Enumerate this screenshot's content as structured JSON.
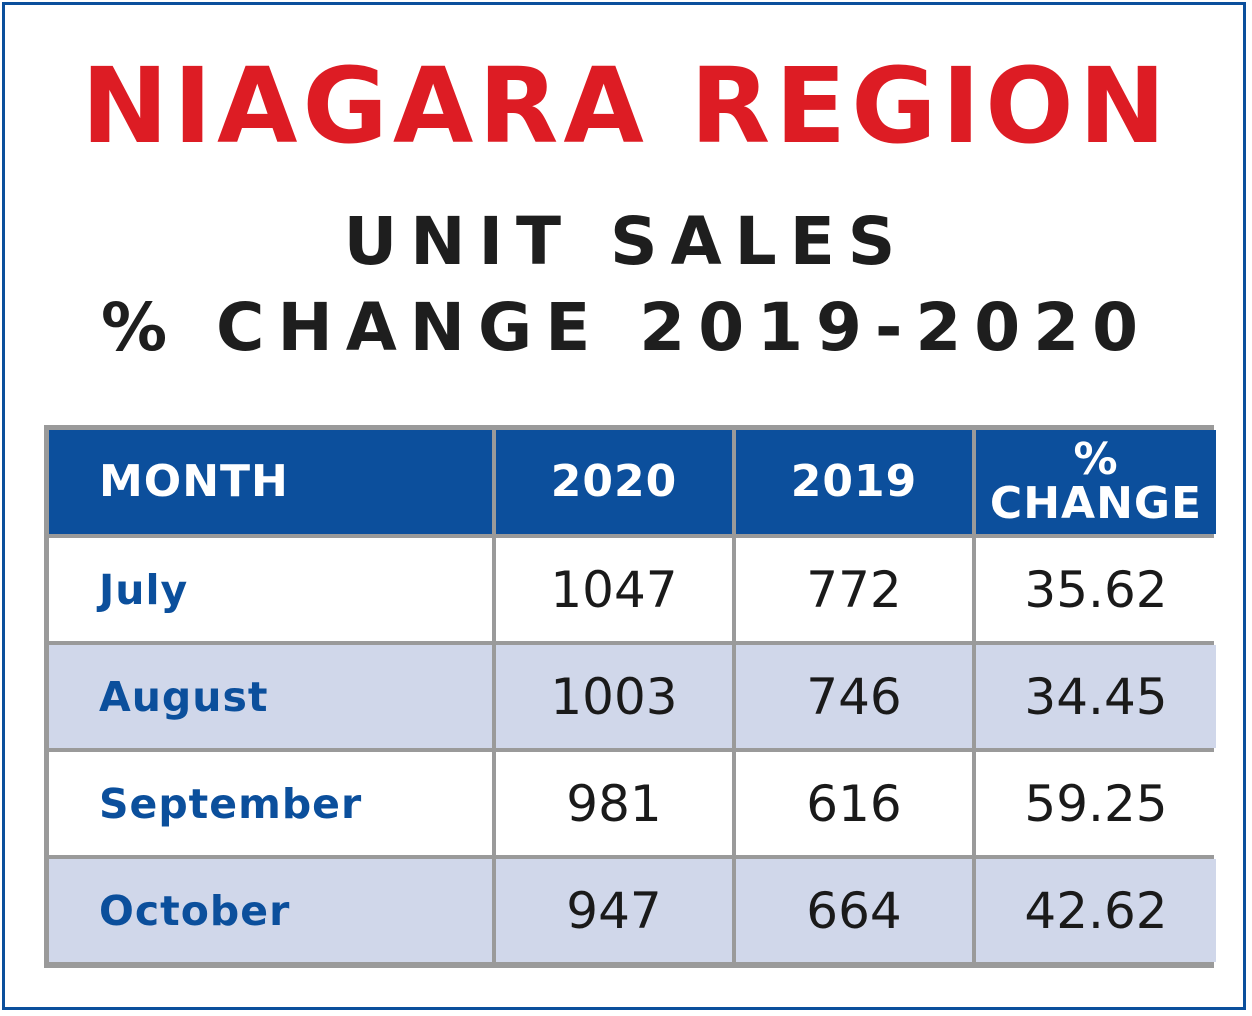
{
  "colors": {
    "title": "#dd1c24",
    "subtitle": "#1e1e1e",
    "header_bg": "#0c4f9c",
    "header_text": "#ffffff",
    "month_text": "#0b4f9c",
    "row_white": "#ffffff",
    "row_shaded": "#d0d7ea",
    "frame": "#0b4f9c",
    "grid": "#9a9a9a"
  },
  "header": {
    "title": "NIAGARA REGION",
    "subtitle_line1": "UNIT SALES",
    "subtitle_line2": "% CHANGE 2019-2020"
  },
  "chart_data": {
    "type": "table",
    "title": "NIAGARA REGION",
    "subtitle": "UNIT SALES % CHANGE 2019-2020",
    "columns": [
      "MONTH",
      "2020",
      "2019",
      "%",
      "CHANGE"
    ],
    "column_headers": {
      "month": "MONTH",
      "y2020": "2020",
      "y2019": "2019",
      "pct_line1": "%",
      "pct_line2": "CHANGE"
    },
    "rows": [
      {
        "month": "July",
        "y2020": "1047",
        "y2019": "772",
        "pct": "35.62"
      },
      {
        "month": "August",
        "y2020": "1003",
        "y2019": "746",
        "pct": "34.45"
      },
      {
        "month": "September",
        "y2020": "981",
        "y2019": "616",
        "pct": "59.25"
      },
      {
        "month": "October",
        "y2020": "947",
        "y2019": "664",
        "pct": "42.62"
      }
    ]
  }
}
